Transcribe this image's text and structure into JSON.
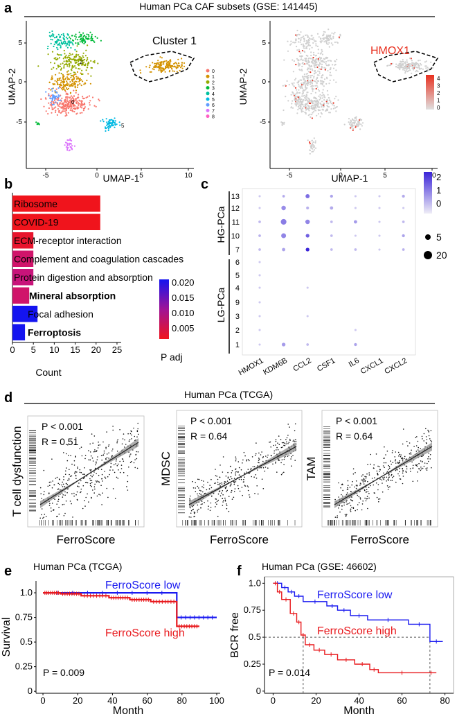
{
  "panel_a": {
    "letter": "a",
    "header": "Human PCa CAF subsets (GSE: 141445)",
    "left": {
      "cluster_label": "Cluster 1",
      "xlabel": "UMAP-1",
      "ylabel": "UMAP-2",
      "xticks": [
        "-5",
        "0",
        "5",
        "10"
      ],
      "yticks": [
        "5",
        "0",
        "-5"
      ],
      "legend": [
        "0",
        "1",
        "2",
        "3",
        "4",
        "5",
        "6",
        "7",
        "8"
      ],
      "legend_colors": [
        "#f8766d",
        "#d39200",
        "#93aa00",
        "#00ba38",
        "#00c19f",
        "#00b9e3",
        "#619cff",
        "#db72fb",
        "#ff61c3"
      ],
      "cluster_numbers": [
        "2",
        "0",
        "5"
      ]
    },
    "right": {
      "gene_label": "HMOX1",
      "xlabel": "UMAP-1",
      "ylabel": "UMAP-2",
      "xticks": [
        "-5",
        "0",
        "5",
        "10"
      ],
      "yticks": [
        "5",
        "0",
        "-5"
      ],
      "colorbar_ticks": [
        "4",
        "3",
        "2",
        "1",
        "0"
      ],
      "gene_color": "#e8301f"
    }
  },
  "panel_b": {
    "letter": "b",
    "xlabel": "Count",
    "legend_title": "P adj",
    "legend_ticks": [
      "0.020",
      "0.015",
      "0.010",
      "0.005"
    ]
  },
  "panel_c": {
    "letter": "c",
    "group_hg": "HG-PCa",
    "group_lg": "LG-PCa",
    "rows": [
      "13",
      "12",
      "11",
      "10",
      "7",
      "6",
      "5",
      "4",
      "9",
      "3",
      "2",
      "1"
    ],
    "genes": [
      "HMOX1",
      "KDM6B",
      "CCL2",
      "CSF1",
      "IL6",
      "CXCL1",
      "CXCL2"
    ],
    "color_ticks": [
      "2",
      "1",
      "0"
    ],
    "size_ticks": [
      "5",
      "20"
    ]
  },
  "panel_d": {
    "letter": "d",
    "header": "Human PCa (TCGA)",
    "plots": [
      {
        "ylabel": "T cell dysfunction",
        "xlabel": "FerroScore",
        "p": "P < 0.001",
        "r": "R = 0.51"
      },
      {
        "ylabel": "MDSC",
        "xlabel": "FerroScore",
        "p": "P < 0.001",
        "r": "R = 0.64"
      },
      {
        "ylabel": "TAM",
        "xlabel": "FerroScore",
        "p": "P < 0.001",
        "r": "R = 0.64"
      }
    ]
  },
  "panel_e": {
    "letter": "e",
    "title": "Human PCa (TCGA)",
    "pvalue": "P = 0.009"
  },
  "panel_f": {
    "letter": "f",
    "title": "Human PCa (GSE: 46602)",
    "pvalue": "P = 0.014"
  },
  "chart_data": [
    {
      "type": "bar",
      "panel": "b",
      "categories": [
        "Ribosome",
        "COVID-19",
        "ECM-receptor interaction",
        "Complement and coagulation cascades",
        "Protein digestion and absorption",
        "Mineral absorption",
        "Focal adhesion",
        "Ferroptosis"
      ],
      "values": [
        21,
        21,
        5,
        5,
        5,
        4,
        6,
        3
      ],
      "padj": [
        0.001,
        0.001,
        0.002,
        0.006,
        0.007,
        0.006,
        0.022,
        0.022
      ],
      "bold": [
        false,
        false,
        false,
        false,
        false,
        true,
        false,
        true
      ],
      "colors": [
        "#f0141c",
        "#f0141c",
        "#e8152e",
        "#d0146a",
        "#c8147a",
        "#d0146a",
        "#1414f0",
        "#1414f0"
      ],
      "xlabel": "Count",
      "ylabel": "",
      "xticks": [
        0,
        5,
        10,
        15,
        20,
        25
      ],
      "xlim": [
        0,
        26
      ]
    },
    {
      "type": "scatter",
      "panel": "c",
      "genes": [
        "HMOX1",
        "KDM6B",
        "CCL2",
        "CSF1",
        "IL6",
        "CXCL1",
        "CXCL2"
      ],
      "rows": [
        "13",
        "12",
        "11",
        "10",
        "7",
        "6",
        "5",
        "4",
        "9",
        "3",
        "2",
        "1"
      ],
      "points": [
        {
          "row": "13",
          "gene": "HMOX1",
          "size": 2,
          "expr": 0.0
        },
        {
          "row": "13",
          "gene": "KDM6B",
          "size": 3,
          "expr": 0.4
        },
        {
          "row": "13",
          "gene": "CCL2",
          "size": 7,
          "expr": 1.2
        },
        {
          "row": "13",
          "gene": "CSF1",
          "size": 4,
          "expr": 0.5
        },
        {
          "row": "13",
          "gene": "IL6",
          "size": 2,
          "expr": 0.0
        },
        {
          "row": "13",
          "gene": "CXCL1",
          "size": 2,
          "expr": 0.0
        },
        {
          "row": "13",
          "gene": "CXCL2",
          "size": 4,
          "expr": 0.4
        },
        {
          "row": "12",
          "gene": "HMOX1",
          "size": 2,
          "expr": 0.0
        },
        {
          "row": "12",
          "gene": "KDM6B",
          "size": 8,
          "expr": 0.8
        },
        {
          "row": "12",
          "gene": "CCL2",
          "size": 4,
          "expr": 0.3
        },
        {
          "row": "12",
          "gene": "CSF1",
          "size": 5,
          "expr": 0.4
        },
        {
          "row": "12",
          "gene": "IL6",
          "size": 2,
          "expr": 0.0
        },
        {
          "row": "12",
          "gene": "CXCL1",
          "size": 2,
          "expr": 0.0
        },
        {
          "row": "12",
          "gene": "CXCL2",
          "size": 2,
          "expr": 0.0
        },
        {
          "row": "11",
          "gene": "HMOX1",
          "size": 3,
          "expr": 0.2
        },
        {
          "row": "11",
          "gene": "KDM6B",
          "size": 11,
          "expr": 1.0
        },
        {
          "row": "11",
          "gene": "CCL2",
          "size": 8,
          "expr": 0.9
        },
        {
          "row": "11",
          "gene": "CSF1",
          "size": 3,
          "expr": 0.2
        },
        {
          "row": "11",
          "gene": "IL6",
          "size": 5,
          "expr": 0.6
        },
        {
          "row": "11",
          "gene": "CXCL1",
          "size": 2,
          "expr": 0.0
        },
        {
          "row": "11",
          "gene": "CXCL2",
          "size": 3,
          "expr": 0.2
        },
        {
          "row": "10",
          "gene": "HMOX1",
          "size": 3,
          "expr": 0.3
        },
        {
          "row": "10",
          "gene": "KDM6B",
          "size": 9,
          "expr": 0.9
        },
        {
          "row": "10",
          "gene": "CCL2",
          "size": 6,
          "expr": 1.4
        },
        {
          "row": "10",
          "gene": "CSF1",
          "size": 3,
          "expr": 0.2
        },
        {
          "row": "10",
          "gene": "IL6",
          "size": 2,
          "expr": 0.0
        },
        {
          "row": "10",
          "gene": "CXCL1",
          "size": 2,
          "expr": 0.0
        },
        {
          "row": "10",
          "gene": "CXCL2",
          "size": 4,
          "expr": 0.5
        },
        {
          "row": "7",
          "gene": "HMOX1",
          "size": 3,
          "expr": 0.2
        },
        {
          "row": "7",
          "gene": "KDM6B",
          "size": 5,
          "expr": 0.5
        },
        {
          "row": "7",
          "gene": "CCL2",
          "size": 6,
          "expr": 2.2
        },
        {
          "row": "7",
          "gene": "CSF1",
          "size": 3,
          "expr": 0.2
        },
        {
          "row": "7",
          "gene": "IL6",
          "size": 3,
          "expr": 0.2
        },
        {
          "row": "7",
          "gene": "CXCL1",
          "size": 2,
          "expr": 0.0
        },
        {
          "row": "7",
          "gene": "CXCL2",
          "size": 3,
          "expr": 0.3
        },
        {
          "row": "6",
          "gene": "HMOX1",
          "size": 2,
          "expr": 0.0
        },
        {
          "row": "5",
          "gene": "HMOX1",
          "size": 2,
          "expr": 0.0
        },
        {
          "row": "4",
          "gene": "HMOX1",
          "size": 2,
          "expr": 0.0
        },
        {
          "row": "4",
          "gene": "CCL2",
          "size": 2,
          "expr": 0.0
        },
        {
          "row": "9",
          "gene": "HMOX1",
          "size": 2,
          "expr": 0.0
        },
        {
          "row": "3",
          "gene": "HMOX1",
          "size": 2,
          "expr": 0.0
        },
        {
          "row": "3",
          "gene": "CCL2",
          "size": 2,
          "expr": 0.0
        },
        {
          "row": "2",
          "gene": "HMOX1",
          "size": 2,
          "expr": 0.0
        },
        {
          "row": "2",
          "gene": "IL6",
          "size": 2,
          "expr": 0.0
        },
        {
          "row": "1",
          "gene": "HMOX1",
          "size": 2,
          "expr": 0.0
        },
        {
          "row": "1",
          "gene": "KDM6B",
          "size": 6,
          "expr": 0.6
        },
        {
          "row": "1",
          "gene": "CCL2",
          "size": 3,
          "expr": 0.2
        },
        {
          "row": "1",
          "gene": "IL6",
          "size": 4,
          "expr": 0.5
        }
      ],
      "color_range": [
        -0.5,
        2.2
      ],
      "size_legend": [
        5,
        20
      ]
    },
    {
      "type": "line",
      "panel": "e",
      "xlabel": "Month",
      "ylabel": "Survival",
      "xlim": [
        -4,
        102
      ],
      "ylim": [
        -0.02,
        1.12
      ],
      "xticks": [
        0,
        20,
        40,
        60,
        80,
        100
      ],
      "yticks": [
        0,
        0.25,
        0.5,
        0.75,
        1.0
      ],
      "series": [
        {
          "name": "FerroScore low",
          "color": "#1a1af0",
          "x": [
            0,
            77,
            77,
            100
          ],
          "y": [
            1.0,
            1.0,
            0.75,
            0.75
          ]
        },
        {
          "name": "FerroScore high",
          "color": "#e8181c",
          "x": [
            0,
            10,
            10,
            22,
            22,
            38,
            38,
            50,
            50,
            62,
            62,
            77,
            77,
            90
          ],
          "y": [
            1.0,
            1.0,
            0.99,
            0.99,
            0.97,
            0.97,
            0.95,
            0.95,
            0.93,
            0.93,
            0.91,
            0.91,
            0.66,
            0.66
          ]
        }
      ]
    },
    {
      "type": "line",
      "panel": "f",
      "xlabel": "Month",
      "ylabel": "BCR free",
      "xlim": [
        -4,
        84
      ],
      "ylim": [
        -0.02,
        1.06
      ],
      "xticks": [
        0,
        20,
        40,
        60,
        80
      ],
      "yticks": [
        0,
        0.25,
        0.5,
        0.75,
        1.0
      ],
      "median_x": [
        14,
        73
      ],
      "series": [
        {
          "name": "FerroScore low",
          "color": "#1a1af0",
          "x": [
            0,
            4,
            4,
            7,
            7,
            10,
            10,
            14,
            14,
            25,
            25,
            30,
            30,
            36,
            36,
            44,
            44,
            63,
            63,
            73,
            73,
            79
          ],
          "y": [
            1.0,
            1.0,
            0.96,
            0.96,
            0.92,
            0.92,
            0.88,
            0.88,
            0.83,
            0.83,
            0.79,
            0.79,
            0.75,
            0.75,
            0.7,
            0.7,
            0.66,
            0.66,
            0.62,
            0.62,
            0.46,
            0.46
          ]
        },
        {
          "name": "FerroScore high",
          "color": "#e8181c",
          "x": [
            0,
            2,
            2,
            4,
            4,
            8,
            8,
            11,
            11,
            13,
            13,
            15,
            15,
            19,
            19,
            24,
            24,
            30,
            30,
            38,
            38,
            45,
            45,
            49,
            49,
            71,
            71,
            76
          ],
          "y": [
            1.0,
            1.0,
            0.92,
            0.92,
            0.85,
            0.85,
            0.72,
            0.72,
            0.64,
            0.64,
            0.52,
            0.52,
            0.43,
            0.43,
            0.38,
            0.38,
            0.34,
            0.34,
            0.29,
            0.29,
            0.25,
            0.25,
            0.2,
            0.2,
            0.17,
            0.17,
            0.17,
            0.17
          ]
        }
      ]
    }
  ]
}
